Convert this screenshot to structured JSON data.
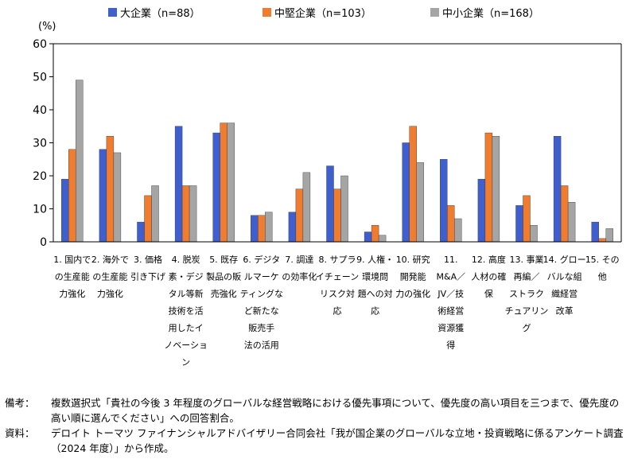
{
  "chart_data": {
    "type": "bar",
    "y_unit": "(%)",
    "ylim": [
      0,
      60
    ],
    "yticks": [
      0,
      10,
      20,
      30,
      40,
      50,
      60
    ],
    "grid": false,
    "legend_position": "top",
    "categories": [
      "1. 国内での生産能力強化",
      "2. 海外での生産能力強化",
      "3. 価格引き下げ",
      "4. 脱炭素・デジタル等新技術を活用したイノベーション",
      "5. 既存製品の販売強化",
      "6. デジタルマーケティングなど新たな販売手法の活用",
      "7. 調達の効率化",
      "8. サプライチェーンリスク対応",
      "9. 人権・環境問題への対応",
      "10. 研究開発能力の強化",
      "11. M&A／JV／技術経営資源獲得",
      "12. 高度人材の確保",
      "13. 事業再編／ストラクチュアリング",
      "14. グローバルな組織経営改革",
      "15. その他"
    ],
    "category_label_lines": [
      [
        "1. 国内で",
        "の生産能",
        "力強化"
      ],
      [
        "2. 海外で",
        "の生産能",
        "力強化"
      ],
      [
        "3. 価格",
        "引き下げ"
      ],
      [
        "4. 脱炭",
        "素・デジ",
        "タル等新",
        "技術を活",
        "用したイ",
        "ノベーショ",
        "ン"
      ],
      [
        "5. 既存",
        "製品の販",
        "売強化"
      ],
      [
        "6. デジタ",
        "ルマーケ",
        "ティングな",
        "ど新たな",
        "販売手",
        "法の活用"
      ],
      [
        "7. 調達",
        "の効率化"
      ],
      [
        "8. サプラ",
        "イチェーン",
        "リスク対",
        "応"
      ],
      [
        "9. 人権・",
        "環境問",
        "題への対",
        "応"
      ],
      [
        "10. 研究",
        "開発能",
        "力の強化"
      ],
      [
        "11.",
        "M&A／",
        "JV／技",
        "術経営",
        "資源獲",
        "得"
      ],
      [
        "12. 高度",
        "人材の確",
        "保"
      ],
      [
        "13. 事業",
        "再編／",
        "ストラク",
        "チュアリン",
        "グ"
      ],
      [
        "14. グロー",
        "バルな組",
        "織経営",
        "改革"
      ],
      [
        "15. その",
        "他"
      ]
    ],
    "series": [
      {
        "name": "大企業（n=88）",
        "color": "#3f5fcf",
        "values": [
          19,
          28,
          6,
          35,
          33,
          8,
          9,
          23,
          3,
          30,
          25,
          19,
          11,
          32,
          6
        ]
      },
      {
        "name": "中堅企業（n=103）",
        "color": "#f07c30",
        "values": [
          28,
          32,
          14,
          17,
          36,
          8,
          16,
          16,
          5,
          35,
          11,
          33,
          14,
          17,
          1
        ]
      },
      {
        "name": "中小企業（n=168）",
        "color": "#a5a5a5",
        "values": [
          49,
          27,
          17,
          17,
          36,
          9,
          21,
          20,
          2,
          24,
          7,
          32,
          5,
          12,
          4
        ]
      }
    ]
  },
  "notes": {
    "remark_key": "備考：",
    "remark_text": "複数選択式「貴社の今後 3 年程度のグローバルな経営戦略における優先事項について、優先度の高い項目を三つまで、優先度の高い順に選んでください」への回答割合。",
    "source_key": "資料：",
    "source_text": "デロイト トーマツ ファイナンシャルアドバイザリー合同会社「我が国企業のグローバルな立地・投資戦略に係るアンケート調査（2024 年度）」から作成。"
  }
}
